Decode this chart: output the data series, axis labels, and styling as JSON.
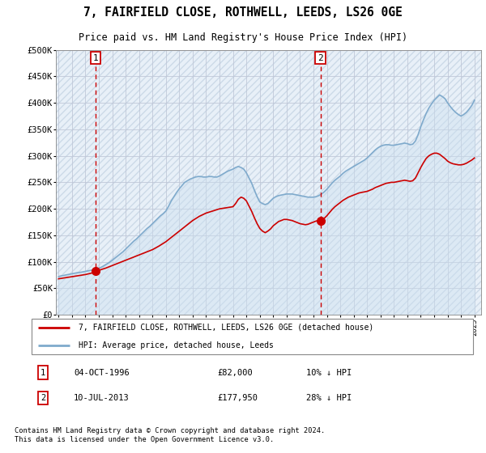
{
  "title": "7, FAIRFIELD CLOSE, ROTHWELL, LEEDS, LS26 0GE",
  "subtitle": "Price paid vs. HM Land Registry's House Price Index (HPI)",
  "legend_line1": "7, FAIRFIELD CLOSE, ROTHWELL, LEEDS, LS26 0GE (detached house)",
  "legend_line2": "HPI: Average price, detached house, Leeds",
  "footnote": "Contains HM Land Registry data © Crown copyright and database right 2024.\nThis data is licensed under the Open Government Licence v3.0.",
  "sale1_label": "1",
  "sale1_date": "04-OCT-1996",
  "sale1_price": "£82,000",
  "sale1_hpi": "10% ↓ HPI",
  "sale2_label": "2",
  "sale2_date": "10-JUL-2013",
  "sale2_price": "£177,950",
  "sale2_hpi": "28% ↓ HPI",
  "sale1_x": 1996.75,
  "sale1_y": 82000,
  "sale2_x": 2013.52,
  "sale2_y": 177950,
  "hpi_color": "#7faacc",
  "hpi_fill_color": "#cce0f0",
  "price_color": "#cc0000",
  "marker_color": "#cc0000",
  "dashed_color": "#cc0000",
  "background_color": "#ffffff",
  "chart_bg_color": "#e8f0f8",
  "grid_color": "#aaaacc",
  "ylim": [
    0,
    500000
  ],
  "yticks": [
    0,
    50000,
    100000,
    150000,
    200000,
    250000,
    300000,
    350000,
    400000,
    450000,
    500000
  ],
  "xlim_start": 1993.8,
  "xlim_end": 2025.5,
  "hpi_x": [
    1994.0,
    1994.1,
    1994.2,
    1994.3,
    1994.4,
    1994.5,
    1994.6,
    1994.7,
    1994.8,
    1994.9,
    1995.0,
    1995.1,
    1995.2,
    1995.3,
    1995.4,
    1995.5,
    1995.6,
    1995.7,
    1995.8,
    1995.9,
    1996.0,
    1996.1,
    1996.2,
    1996.3,
    1996.4,
    1996.5,
    1996.6,
    1996.7,
    1996.8,
    1996.9,
    1997.0,
    1997.2,
    1997.4,
    1997.6,
    1997.8,
    1998.0,
    1998.2,
    1998.4,
    1998.6,
    1998.8,
    1999.0,
    1999.2,
    1999.4,
    1999.6,
    1999.8,
    2000.0,
    2000.2,
    2000.4,
    2000.6,
    2000.8,
    2001.0,
    2001.2,
    2001.4,
    2001.6,
    2001.8,
    2002.0,
    2002.2,
    2002.4,
    2002.6,
    2002.8,
    2003.0,
    2003.2,
    2003.4,
    2003.6,
    2003.8,
    2004.0,
    2004.2,
    2004.4,
    2004.6,
    2004.8,
    2005.0,
    2005.2,
    2005.4,
    2005.6,
    2005.8,
    2006.0,
    2006.2,
    2006.4,
    2006.6,
    2006.8,
    2007.0,
    2007.2,
    2007.4,
    2007.6,
    2007.8,
    2008.0,
    2008.2,
    2008.4,
    2008.6,
    2008.8,
    2009.0,
    2009.2,
    2009.4,
    2009.6,
    2009.8,
    2010.0,
    2010.2,
    2010.4,
    2010.6,
    2010.8,
    2011.0,
    2011.2,
    2011.4,
    2011.6,
    2011.8,
    2012.0,
    2012.2,
    2012.4,
    2012.6,
    2012.8,
    2013.0,
    2013.2,
    2013.4,
    2013.6,
    2013.8,
    2014.0,
    2014.2,
    2014.4,
    2014.6,
    2014.8,
    2015.0,
    2015.2,
    2015.4,
    2015.6,
    2015.8,
    2016.0,
    2016.2,
    2016.4,
    2016.6,
    2016.8,
    2017.0,
    2017.2,
    2017.4,
    2017.6,
    2017.8,
    2018.0,
    2018.2,
    2018.4,
    2018.6,
    2018.8,
    2019.0,
    2019.2,
    2019.4,
    2019.6,
    2019.8,
    2020.0,
    2020.2,
    2020.4,
    2020.6,
    2020.8,
    2021.0,
    2021.2,
    2021.4,
    2021.6,
    2021.8,
    2022.0,
    2022.2,
    2022.4,
    2022.6,
    2022.8,
    2023.0,
    2023.2,
    2023.4,
    2023.6,
    2023.8,
    2024.0,
    2024.2,
    2024.4,
    2024.6,
    2024.8,
    2025.0
  ],
  "hpi_y": [
    72000,
    73000,
    73500,
    74000,
    74500,
    75000,
    75500,
    76000,
    76500,
    77000,
    77500,
    78000,
    78500,
    79000,
    79500,
    79800,
    80000,
    80500,
    81000,
    81500,
    82000,
    82500,
    83000,
    83500,
    84000,
    84500,
    85000,
    85500,
    86000,
    86500,
    88000,
    90000,
    93000,
    96000,
    99000,
    103000,
    107000,
    111000,
    115000,
    119000,
    124000,
    129000,
    134000,
    139000,
    143000,
    148000,
    153000,
    158000,
    163000,
    167000,
    172000,
    177000,
    182000,
    187000,
    191000,
    196000,
    205000,
    215000,
    223000,
    231000,
    238000,
    244000,
    250000,
    253000,
    256000,
    258000,
    260000,
    261000,
    261000,
    260000,
    260000,
    261000,
    261000,
    260000,
    260000,
    262000,
    265000,
    268000,
    271000,
    273000,
    275000,
    278000,
    280000,
    278000,
    275000,
    268000,
    258000,
    248000,
    235000,
    223000,
    213000,
    210000,
    208000,
    210000,
    215000,
    220000,
    223000,
    225000,
    226000,
    227000,
    228000,
    228000,
    228000,
    227000,
    226000,
    225000,
    224000,
    223000,
    222000,
    222000,
    222000,
    223000,
    225000,
    228000,
    232000,
    237000,
    243000,
    249000,
    254000,
    258000,
    262000,
    267000,
    271000,
    274000,
    277000,
    280000,
    283000,
    286000,
    289000,
    292000,
    296000,
    301000,
    306000,
    311000,
    315000,
    318000,
    320000,
    321000,
    321000,
    320000,
    320000,
    321000,
    322000,
    323000,
    324000,
    323000,
    321000,
    322000,
    328000,
    340000,
    355000,
    368000,
    380000,
    390000,
    398000,
    405000,
    410000,
    415000,
    412000,
    408000,
    400000,
    393000,
    387000,
    382000,
    378000,
    375000,
    378000,
    382000,
    388000,
    395000,
    405000
  ],
  "price_x": [
    1994.0,
    1994.5,
    1995.0,
    1995.5,
    1996.0,
    1996.5,
    1996.75,
    1997.0,
    1997.5,
    1998.0,
    1998.5,
    1999.0,
    1999.5,
    2000.0,
    2000.5,
    2001.0,
    2001.5,
    2002.0,
    2002.5,
    2003.0,
    2003.5,
    2004.0,
    2004.5,
    2005.0,
    2005.5,
    2006.0,
    2006.5,
    2007.0,
    2007.2,
    2007.4,
    2007.6,
    2007.8,
    2008.0,
    2008.2,
    2008.4,
    2008.6,
    2008.8,
    2009.0,
    2009.2,
    2009.4,
    2009.6,
    2009.8,
    2010.0,
    2010.2,
    2010.4,
    2010.6,
    2010.8,
    2011.0,
    2011.2,
    2011.4,
    2011.6,
    2011.8,
    2012.0,
    2012.2,
    2012.4,
    2012.6,
    2012.8,
    2013.0,
    2013.2,
    2013.4,
    2013.52,
    2013.6,
    2013.8,
    2014.0,
    2014.2,
    2014.4,
    2014.6,
    2014.8,
    2015.0,
    2015.2,
    2015.4,
    2015.6,
    2015.8,
    2016.0,
    2016.2,
    2016.4,
    2016.6,
    2016.8,
    2017.0,
    2017.2,
    2017.4,
    2017.6,
    2017.8,
    2018.0,
    2018.2,
    2018.4,
    2018.6,
    2018.8,
    2019.0,
    2019.2,
    2019.4,
    2019.6,
    2019.8,
    2020.0,
    2020.2,
    2020.4,
    2020.6,
    2020.8,
    2021.0,
    2021.2,
    2021.4,
    2021.6,
    2021.8,
    2022.0,
    2022.2,
    2022.4,
    2022.6,
    2022.8,
    2023.0,
    2023.2,
    2023.4,
    2023.6,
    2023.8,
    2024.0,
    2024.2,
    2024.4,
    2024.6,
    2024.8,
    2025.0
  ],
  "price_y": [
    68000,
    70000,
    72000,
    74000,
    76000,
    79000,
    82000,
    84000,
    88000,
    93000,
    98000,
    103000,
    108000,
    113000,
    118000,
    123000,
    130000,
    138000,
    148000,
    158000,
    168000,
    178000,
    186000,
    192000,
    196000,
    200000,
    202000,
    204000,
    210000,
    218000,
    222000,
    220000,
    215000,
    205000,
    195000,
    183000,
    172000,
    163000,
    158000,
    155000,
    158000,
    162000,
    168000,
    172000,
    176000,
    178000,
    180000,
    180000,
    179000,
    178000,
    176000,
    174000,
    172000,
    171000,
    170000,
    171000,
    173000,
    175000,
    177000,
    178000,
    177950,
    179000,
    182000,
    187000,
    193000,
    199000,
    204000,
    208000,
    212000,
    216000,
    219000,
    222000,
    224000,
    226000,
    228000,
    230000,
    231000,
    232000,
    233000,
    235000,
    237000,
    240000,
    242000,
    244000,
    246000,
    248000,
    249000,
    250000,
    250000,
    251000,
    252000,
    253000,
    254000,
    253000,
    252000,
    253000,
    258000,
    268000,
    278000,
    287000,
    295000,
    300000,
    303000,
    305000,
    305000,
    303000,
    299000,
    295000,
    290000,
    287000,
    285000,
    284000,
    283000,
    283000,
    284000,
    286000,
    289000,
    292000,
    296000
  ],
  "xtick_years": [
    1994,
    1995,
    1996,
    1997,
    1998,
    1999,
    2000,
    2001,
    2002,
    2003,
    2004,
    2005,
    2006,
    2007,
    2008,
    2009,
    2010,
    2011,
    2012,
    2013,
    2014,
    2015,
    2016,
    2017,
    2018,
    2019,
    2020,
    2021,
    2022,
    2023,
    2024,
    2025
  ]
}
